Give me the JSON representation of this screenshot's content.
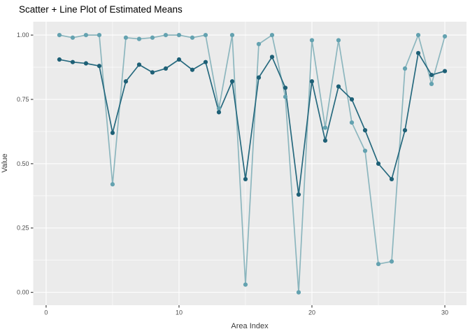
{
  "chart_data": {
    "type": "line",
    "title": "Scatter + Line Plot of Estimated Means",
    "xlabel": "Area Index",
    "ylabel": "Value",
    "x": [
      1,
      2,
      3,
      4,
      5,
      6,
      7,
      8,
      9,
      10,
      11,
      12,
      13,
      14,
      15,
      16,
      17,
      18,
      19,
      20,
      21,
      22,
      23,
      24,
      25,
      26,
      27,
      28,
      29,
      30
    ],
    "series": [
      {
        "name": "estimated-mean-light",
        "line_color": "#8CB6BE",
        "marker_color": "#64A2B0",
        "values": [
          1.0,
          0.99,
          1.0,
          1.0,
          0.42,
          0.99,
          0.985,
          0.99,
          1.0,
          1.0,
          0.99,
          1.0,
          0.715,
          1.0,
          0.03,
          0.965,
          1.0,
          0.76,
          0.0,
          0.98,
          0.64,
          0.98,
          0.66,
          0.55,
          0.11,
          0.12,
          0.87,
          1.0,
          0.81,
          0.995
        ]
      },
      {
        "name": "estimated-mean-dark",
        "line_color": "#26697E",
        "marker_color": "#1E6076",
        "values": [
          0.905,
          0.895,
          0.89,
          0.88,
          0.62,
          0.82,
          0.885,
          0.855,
          0.87,
          0.905,
          0.865,
          0.895,
          0.7,
          0.82,
          0.44,
          0.835,
          0.915,
          0.795,
          0.38,
          0.82,
          0.59,
          0.8,
          0.75,
          0.63,
          0.5,
          0.44,
          0.63,
          0.93,
          0.845,
          0.86
        ]
      }
    ],
    "xlim": [
      -0.97,
      31.63
    ],
    "ylim": [
      -0.05,
      1.052
    ],
    "x_ticks": [
      {
        "v": 0,
        "label": "0"
      },
      {
        "v": 10,
        "label": "10"
      },
      {
        "v": 20,
        "label": "20"
      },
      {
        "v": 30,
        "label": "30"
      }
    ],
    "x_minor_ticks": [
      5,
      15,
      25
    ],
    "y_ticks": [
      {
        "v": 0.0,
        "label": "0.00"
      },
      {
        "v": 0.25,
        "label": "0.25"
      },
      {
        "v": 0.5,
        "label": "0.50"
      },
      {
        "v": 0.75,
        "label": "0.75"
      },
      {
        "v": 1.0,
        "label": "1.00"
      }
    ],
    "y_minor_ticks": [
      0.125,
      0.375,
      0.625,
      0.875
    ],
    "grid": true,
    "legend": "none",
    "panel_bg": "#EBEBEB",
    "grid_color": "#FFFFFF",
    "tick_mark_color": "#333333",
    "tick_label_color": "#4D4D4D",
    "title_color": "#000000"
  }
}
